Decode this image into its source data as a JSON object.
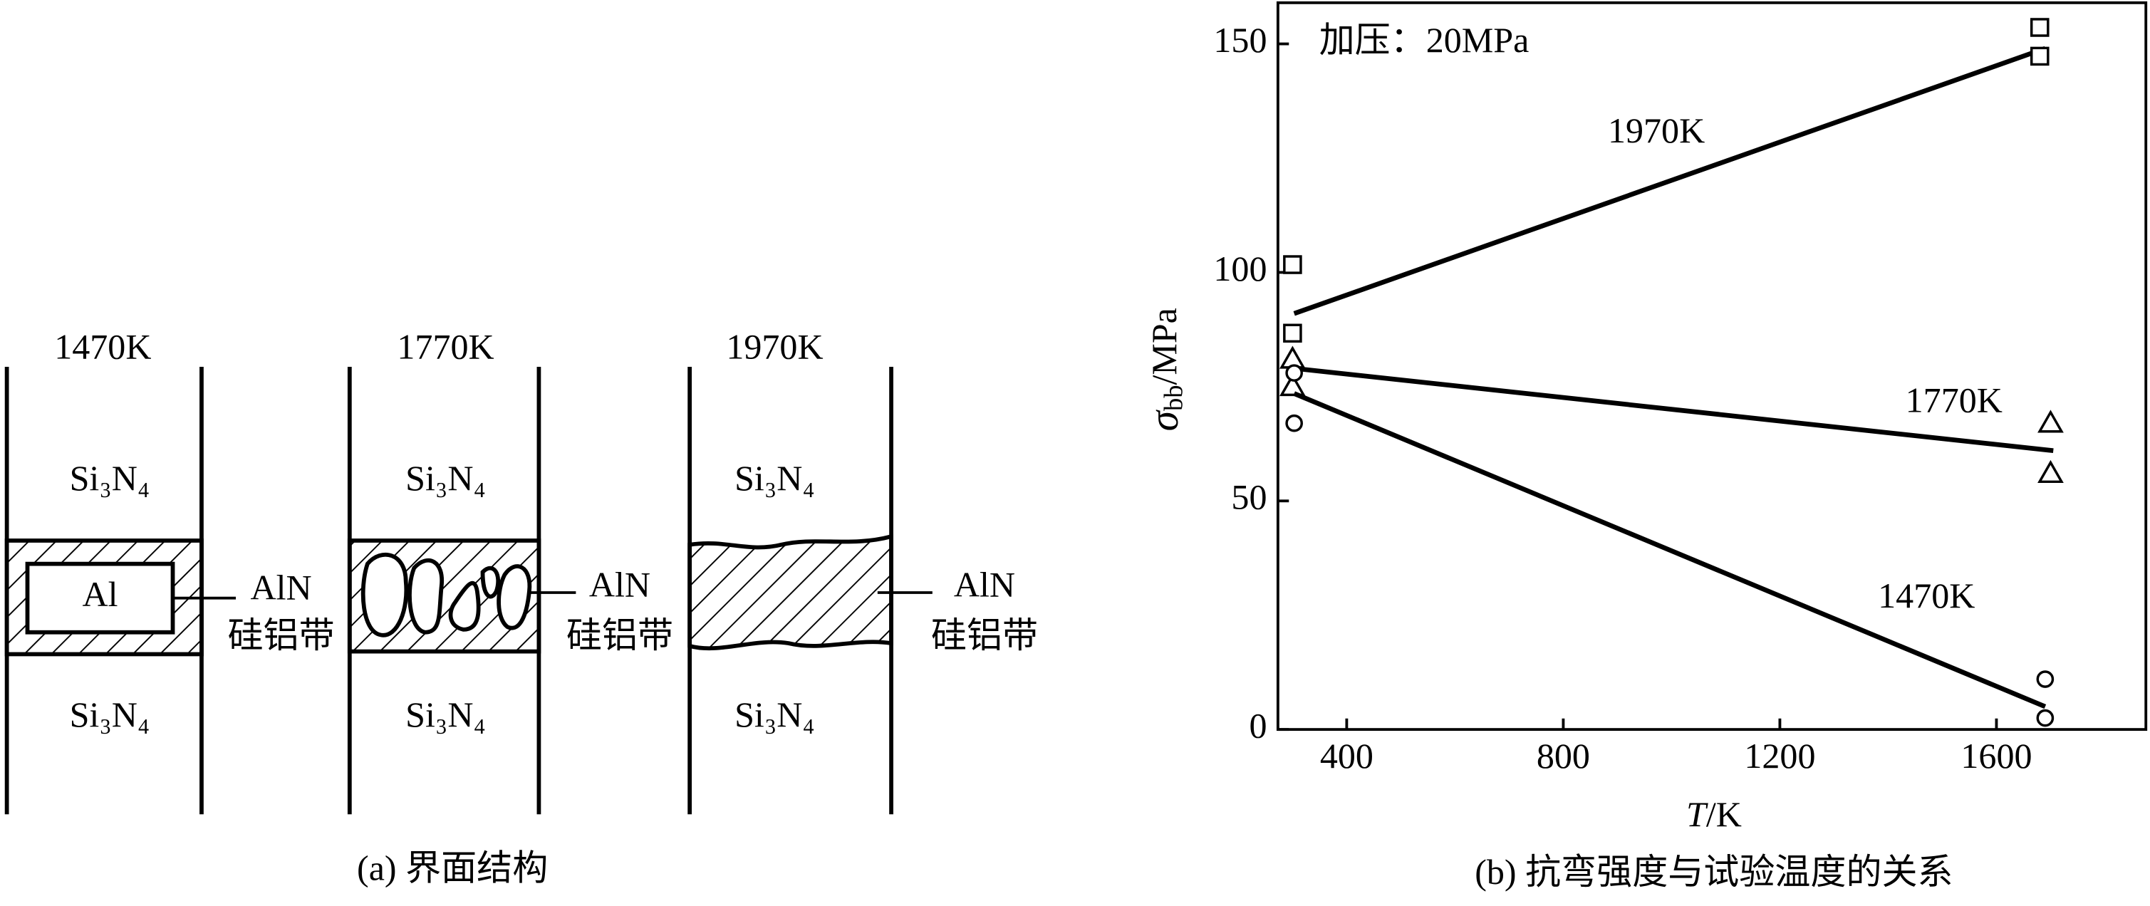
{
  "diagram": {
    "caption": "(a) 界面结构",
    "panels": [
      {
        "temperature": "1470K",
        "top": "Si₃N₄",
        "bottom": "Si₃N₄",
        "core": "Al",
        "layer": "AlN",
        "band": "硅铝带"
      },
      {
        "temperature": "1770K",
        "top": "Si₃N₄",
        "bottom": "Si₃N₄",
        "layer": "AlN",
        "band": "硅铝带"
      },
      {
        "temperature": "1970K",
        "top": "Si₃N₄",
        "bottom": "Si₃N₄",
        "layer": "AlN",
        "band": "硅铝带"
      }
    ]
  },
  "chart_data": {
    "type": "scatter",
    "annotation": "加压：20MPa",
    "caption": "(b) 抗弯强度与试验温度的关系",
    "xlabel": {
      "symbol": "T",
      "unit": "/K"
    },
    "ylabel": {
      "symbol": "σ",
      "subscript": "bb",
      "unit": "/MPa"
    },
    "xlim": [
      273,
      1876
    ],
    "ylim": [
      0,
      159
    ],
    "xticks": [
      400,
      800,
      1200,
      1600
    ],
    "yticks": [
      0,
      50,
      100,
      150
    ],
    "series": [
      {
        "name": "1970K",
        "marker": "square",
        "color": "#000000",
        "x": [
          300,
          300,
          1680,
          1680
        ],
        "values": [
          101.7,
          86.7,
          153.6,
          147.3
        ],
        "fit": {
          "x": [
            303,
            1690
          ],
          "values": [
            91,
            149
          ]
        }
      },
      {
        "name": "1770K",
        "marker": "triangle",
        "color": "#000000",
        "x": [
          300,
          300,
          1700,
          1700
        ],
        "values": [
          81,
          75,
          67,
          56
        ],
        "fit": {
          "x": [
            303,
            1705
          ],
          "values": [
            79,
            61
          ]
        }
      },
      {
        "name": "1470K",
        "marker": "circle",
        "color": "#000000",
        "x": [
          303,
          303,
          1690,
          1690
        ],
        "values": [
          78,
          67,
          11,
          2.5
        ],
        "fit": {
          "x": [
            303,
            1690
          ],
          "values": [
            73.5,
            5
          ]
        }
      }
    ]
  }
}
